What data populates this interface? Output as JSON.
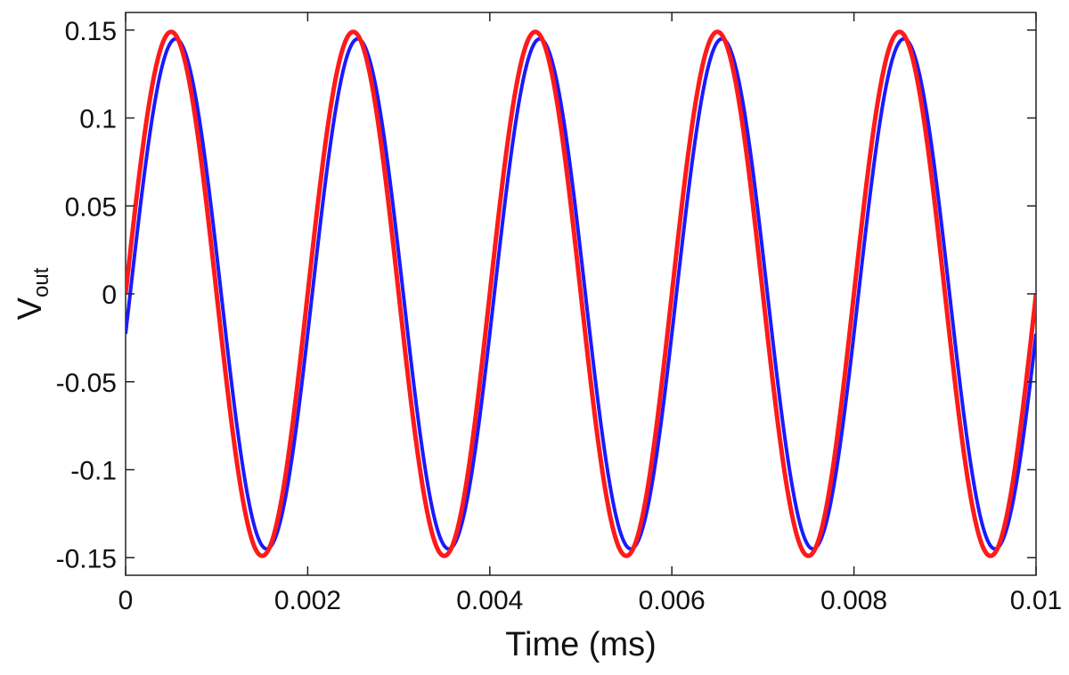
{
  "chart_data": {
    "type": "line",
    "title": "",
    "xlabel": "Time (ms)",
    "ylabel_main": "V",
    "ylabel_sub": "out",
    "xlim": [
      0,
      0.01
    ],
    "ylim": [
      -0.16,
      0.16
    ],
    "grid": false,
    "x_ticks": [
      {
        "value": 0,
        "label": "0"
      },
      {
        "value": 0.002,
        "label": "0.002"
      },
      {
        "value": 0.004,
        "label": "0.004"
      },
      {
        "value": 0.006,
        "label": "0.006"
      },
      {
        "value": 0.008,
        "label": "0.008"
      },
      {
        "value": 0.01,
        "label": "0.01"
      }
    ],
    "y_ticks": [
      {
        "value": 0.15,
        "label": "0.15"
      },
      {
        "value": 0.1,
        "label": "0.1"
      },
      {
        "value": 0.05,
        "label": "0.05"
      },
      {
        "value": 0,
        "label": "0"
      },
      {
        "value": -0.05,
        "label": "-0.05"
      },
      {
        "value": -0.1,
        "label": "-0.1"
      },
      {
        "value": -0.15,
        "label": "-0.15"
      }
    ],
    "series": [
      {
        "name": "blue",
        "color": "#1a1aff",
        "amplitude": 0.145,
        "frequency": 500,
        "phase_shift": 5e-05,
        "line_width": 4
      },
      {
        "name": "red",
        "color": "#ff1a1a",
        "amplitude": 0.149,
        "frequency": 500,
        "phase_shift": 0,
        "line_width": 5
      }
    ]
  }
}
